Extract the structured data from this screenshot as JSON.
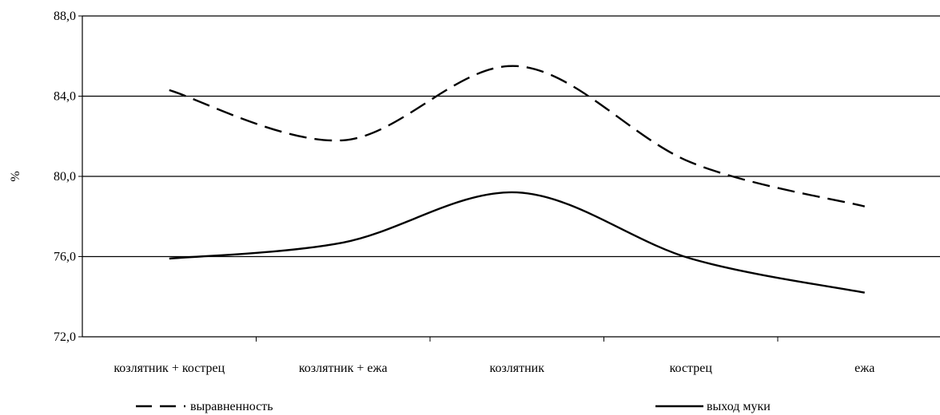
{
  "chart_data": {
    "type": "line",
    "ylabel": "%",
    "xlabel": "",
    "ylim": [
      72.0,
      88.0
    ],
    "yticks": [
      "72,0",
      "76,0",
      "80,0",
      "84,0",
      "88,0"
    ],
    "ytick_values": [
      72.0,
      76.0,
      80.0,
      84.0,
      88.0
    ],
    "categories": [
      "козлятник + кострец",
      "козлятник + ежа",
      "козлятник",
      "кострец",
      "ежа"
    ],
    "grid": true,
    "legend_position": "bottom",
    "series": [
      {
        "name": "выравненность",
        "values": [
          84.3,
          81.8,
          85.5,
          80.7,
          78.5
        ],
        "style": "dashed",
        "color": "#000000"
      },
      {
        "name": "выход муки",
        "values": [
          75.9,
          76.7,
          79.2,
          75.9,
          74.2
        ],
        "style": "solid",
        "color": "#000000"
      }
    ]
  }
}
